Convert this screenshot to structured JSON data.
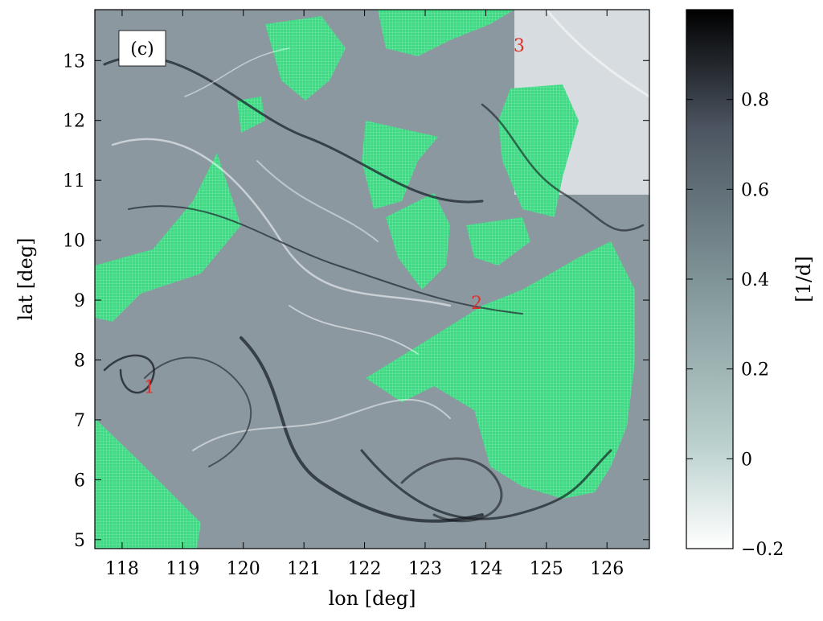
{
  "panel_label": "(c)",
  "x_axis": {
    "label": "lon [deg]",
    "range": [
      117.55,
      126.7
    ],
    "ticks": [
      118,
      119,
      120,
      121,
      122,
      123,
      124,
      125,
      126
    ]
  },
  "y_axis": {
    "label": "lat [deg]",
    "range": [
      4.85,
      13.85
    ],
    "ticks": [
      5,
      6,
      7,
      8,
      9,
      10,
      11,
      12,
      13
    ]
  },
  "colorbar": {
    "label": "[1/d]",
    "range": [
      -0.2,
      1.0
    ],
    "ticks": [
      {
        "value": 0.8,
        "text": "0.8"
      },
      {
        "value": 0.6,
        "text": "0.6"
      },
      {
        "value": 0.4,
        "text": "0.4"
      },
      {
        "value": 0.2,
        "text": "0.2"
      },
      {
        "value": 0.0,
        "text": "0"
      },
      {
        "value": -0.2,
        "text": "−0.2"
      }
    ],
    "colors": [
      "#ffffff",
      "#b8cfcc",
      "#7f9497",
      "#4c5561",
      "#000000"
    ]
  },
  "markers": [
    {
      "text": "1",
      "lon": 118.45,
      "lat": 7.45
    },
    {
      "text": "2",
      "lon": 123.85,
      "lat": 8.85
    },
    {
      "text": "3",
      "lon": 124.55,
      "lat": 13.15
    }
  ],
  "colors": {
    "land": "#3ddc84",
    "marker": "#e0302a",
    "field": "#8b98a0"
  }
}
